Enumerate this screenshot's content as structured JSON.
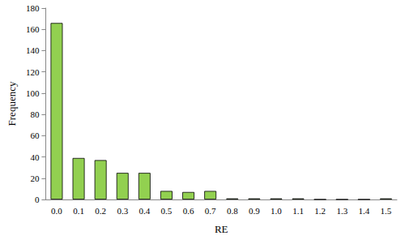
{
  "chart_data": {
    "type": "bar",
    "x_label": "RE",
    "y_label": "Frequency",
    "categories": [
      "0.0",
      "0.1",
      "0.2",
      "0.3",
      "0.4",
      "0.5",
      "0.6",
      "0.7",
      "0.8",
      "0.9",
      "1.0",
      "1.1",
      "1.2",
      "1.3",
      "1.4",
      "1.5"
    ],
    "values": [
      166,
      39,
      37,
      25,
      25,
      8,
      7,
      8,
      1,
      1,
      1,
      1,
      0,
      0,
      0,
      1
    ],
    "color": "#92d050",
    "ylim": [
      0,
      180
    ],
    "yticks": [
      0,
      20,
      40,
      60,
      80,
      100,
      120,
      140,
      160,
      180
    ],
    "grid": false
  }
}
